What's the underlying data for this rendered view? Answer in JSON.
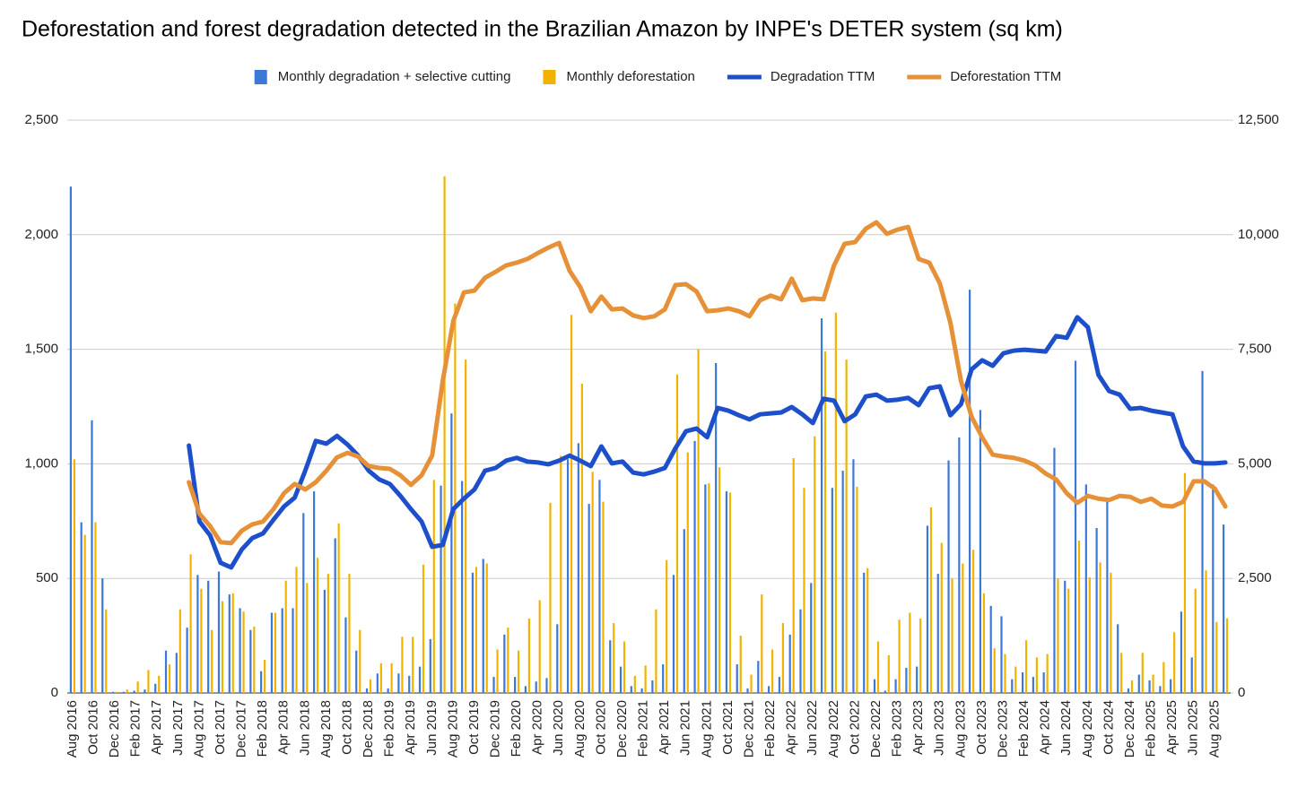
{
  "chart_data": {
    "type": "combo",
    "title": "Deforestation and forest degradation detected in the Brazilian Amazon by INPE's DETER system (sq km)",
    "categories": [
      "Aug 2016",
      null,
      "Oct 2016",
      null,
      "Dec 2016",
      null,
      "Feb 2017",
      null,
      "Apr 2017",
      null,
      "Jun 2017",
      null,
      "Aug 2017",
      null,
      "Oct 2017",
      null,
      "Dec 2017",
      null,
      "Feb 2018",
      null,
      "Apr 2018",
      null,
      "Jun 2018",
      null,
      "Aug 2018",
      null,
      "Oct 2018",
      null,
      "Dec 2018",
      null,
      "Feb 2019",
      null,
      "Apr 2019",
      null,
      "Jun 2019",
      null,
      "Aug 2019",
      null,
      "Oct 2019",
      null,
      "Dec 2019",
      null,
      "Feb 2020",
      null,
      "Apr 2020",
      null,
      "Jun 2020",
      null,
      "Aug 2020",
      null,
      "Oct 2020",
      null,
      "Dec 2020",
      null,
      "Feb 2021",
      null,
      "Apr 2021",
      null,
      "Jun 2021",
      null,
      "Aug 2021",
      null,
      "Oct 2021",
      null,
      "Dec 2021",
      null,
      "Feb 2022",
      null,
      "Apr 2022",
      null,
      "Jun 2022",
      null,
      "Aug 2022",
      null,
      "Oct 2022",
      null,
      "Dec 2022",
      null,
      "Feb 2023",
      null,
      "Apr 2023",
      null,
      "Jun 2023",
      null,
      "Aug 2023",
      null,
      "Oct 2023",
      null,
      "Dec 2023",
      null,
      "Feb 2024",
      null,
      "Apr 2024",
      null,
      "Jun 2024",
      null,
      "Aug 2024",
      null,
      "Oct 2024",
      null,
      "Dec 2024",
      null,
      "Feb 2025",
      null,
      "Apr 2025",
      null,
      "Jun 2025",
      null,
      "Aug 2025",
      null
    ],
    "series": [
      {
        "name": "Monthly degradation + selective cutting",
        "type": "bar",
        "color": "#3c78d8",
        "values": [
          2210,
          745,
          1190,
          500,
          5,
          5,
          10,
          15,
          40,
          185,
          175,
          285,
          515,
          490,
          530,
          430,
          370,
          275,
          95,
          350,
          370,
          370,
          785,
          880,
          450,
          675,
          330,
          185,
          20,
          85,
          20,
          85,
          75,
          115,
          235,
          905,
          1220,
          925,
          525,
          585,
          70,
          255,
          70,
          30,
          50,
          65,
          300,
          1020,
          1090,
          825,
          930,
          230,
          115,
          30,
          20,
          55,
          125,
          515,
          715,
          1100,
          910,
          1440,
          880,
          125,
          20,
          140,
          30,
          70,
          255,
          365,
          480,
          1635,
          895,
          970,
          1020,
          525,
          60,
          10,
          60,
          110,
          115,
          730,
          520,
          1015,
          1115,
          1760,
          1235,
          380,
          335,
          60,
          90,
          70,
          90,
          1070,
          490,
          1450,
          910,
          720,
          850,
          300,
          20,
          80,
          55,
          30,
          60,
          355,
          155,
          1405,
          910,
          735
        ]
      },
      {
        "name": "Monthly deforestation",
        "type": "bar",
        "color": "#f1b300",
        "values": [
          1020,
          690,
          745,
          365,
          5,
          15,
          50,
          100,
          75,
          125,
          365,
          605,
          455,
          275,
          400,
          435,
          355,
          290,
          145,
          350,
          490,
          550,
          480,
          590,
          520,
          740,
          520,
          275,
          60,
          130,
          130,
          245,
          245,
          560,
          930,
          2255,
          1700,
          1455,
          550,
          565,
          190,
          285,
          185,
          325,
          405,
          830,
          1035,
          1650,
          1350,
          965,
          835,
          305,
          225,
          75,
          120,
          365,
          580,
          1390,
          1050,
          1500,
          915,
          985,
          875,
          250,
          80,
          430,
          190,
          305,
          1025,
          895,
          1120,
          1490,
          1660,
          1455,
          900,
          545,
          225,
          165,
          320,
          350,
          325,
          810,
          655,
          500,
          565,
          625,
          435,
          195,
          170,
          115,
          230,
          155,
          170,
          500,
          455,
          665,
          505,
          570,
          525,
          175,
          55,
          175,
          80,
          135,
          265,
          960,
          455,
          535,
          310,
          325
        ]
      },
      {
        "name": "Degradation TTM",
        "type": "line",
        "axis": "y2",
        "color": "#1c4fc9",
        "values": [
          null,
          null,
          null,
          null,
          null,
          null,
          null,
          null,
          null,
          null,
          null,
          5400,
          3740,
          3440,
          2840,
          2740,
          3130,
          3380,
          3480,
          3780,
          4070,
          4260,
          4850,
          5500,
          5440,
          5610,
          5420,
          5180,
          4850,
          4660,
          4560,
          4300,
          4010,
          3740,
          3190,
          3230,
          4010,
          4240,
          4440,
          4850,
          4910,
          5070,
          5130,
          5050,
          5030,
          4990,
          5070,
          5180,
          5070,
          4950,
          5380,
          5010,
          5050,
          4810,
          4770,
          4830,
          4910,
          5340,
          5710,
          5770,
          5580,
          6220,
          6160,
          6060,
          5970,
          6080,
          6100,
          6120,
          6240,
          6080,
          5890,
          6420,
          6380,
          5930,
          6080,
          6470,
          6510,
          6380,
          6400,
          6440,
          6280,
          6650,
          6690,
          6060,
          6300,
          7060,
          7260,
          7140,
          7410,
          7470,
          7490,
          7470,
          7450,
          7790,
          7750,
          8200,
          7980,
          6940,
          6590,
          6510,
          6200,
          6220,
          6160,
          6120,
          6080,
          5380,
          5050,
          5010,
          5010,
          5030
        ]
      },
      {
        "name": "Deforestation TTM",
        "type": "line",
        "axis": "y2",
        "color": "#e69138",
        "values": [
          null,
          null,
          null,
          null,
          null,
          null,
          null,
          null,
          null,
          null,
          null,
          4600,
          3910,
          3640,
          3290,
          3270,
          3540,
          3680,
          3740,
          4010,
          4360,
          4560,
          4440,
          4600,
          4850,
          5140,
          5240,
          5160,
          4950,
          4910,
          4890,
          4750,
          4540,
          4750,
          5180,
          6810,
          8120,
          8740,
          8780,
          9060,
          9190,
          9330,
          9390,
          9470,
          9600,
          9720,
          9820,
          9210,
          8860,
          8330,
          8650,
          8370,
          8390,
          8240,
          8180,
          8220,
          8370,
          8900,
          8920,
          8760,
          8330,
          8350,
          8390,
          8330,
          8220,
          8570,
          8670,
          8590,
          9040,
          8570,
          8610,
          8590,
          9330,
          9800,
          9840,
          10130,
          10270,
          10020,
          10110,
          10170,
          9470,
          9390,
          8940,
          8080,
          6810,
          6030,
          5580,
          5200,
          5160,
          5130,
          5070,
          4970,
          4790,
          4660,
          4360,
          4150,
          4300,
          4240,
          4210,
          4300,
          4280,
          4170,
          4240,
          4090,
          4070,
          4170,
          4620,
          4620,
          4460,
          4070
        ]
      }
    ],
    "ylim": [
      0,
      2500
    ],
    "yticks": [
      0,
      500,
      {
        "value": 1000,
        "label": "1,000"
      },
      {
        "value": 1500,
        "label": "1,500"
      },
      {
        "value": 2000,
        "label": "2,000"
      },
      {
        "value": 2500,
        "label": "2,500"
      }
    ],
    "y2lim": [
      0,
      12500
    ],
    "y2ticks": [
      0,
      {
        "value": 2500,
        "label": "2,500"
      },
      {
        "value": 5000,
        "label": "5,000"
      },
      {
        "value": 7500,
        "label": "7,500"
      },
      {
        "value": 10000,
        "label": "10,000"
      },
      {
        "value": 12500,
        "label": "12,500"
      }
    ],
    "grid": true,
    "legend": "top"
  }
}
